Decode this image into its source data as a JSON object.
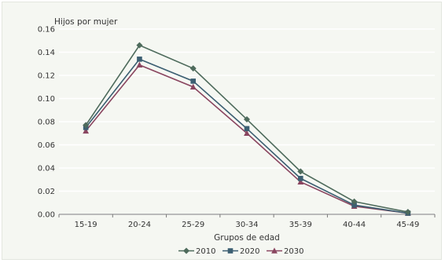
{
  "chart_data": {
    "type": "line",
    "title": "",
    "ylabel": "Hijos por mujer",
    "xlabel": "Grupos de edad",
    "categories": [
      "15-19",
      "20-24",
      "25-29",
      "30-34",
      "35-39",
      "40-44",
      "45-49"
    ],
    "ylim": [
      0,
      0.16
    ],
    "yticks": [
      "0.00",
      "0.02",
      "0.04",
      "0.06",
      "0.08",
      "0.10",
      "0.12",
      "0.14",
      "0.16"
    ],
    "grid": "horizontal",
    "legend_position": "bottom",
    "series": [
      {
        "name": "2010",
        "color": "#4e6b5c",
        "marker": "diamond",
        "values": [
          0.077,
          0.146,
          0.126,
          0.082,
          0.037,
          0.011,
          0.002
        ]
      },
      {
        "name": "2020",
        "color": "#3c5f72",
        "marker": "square",
        "values": [
          0.075,
          0.134,
          0.115,
          0.074,
          0.031,
          0.008,
          0.001
        ]
      },
      {
        "name": "2030",
        "color": "#8a4660",
        "marker": "triangle",
        "values": [
          0.072,
          0.129,
          0.11,
          0.07,
          0.028,
          0.007,
          0.001
        ]
      }
    ]
  }
}
